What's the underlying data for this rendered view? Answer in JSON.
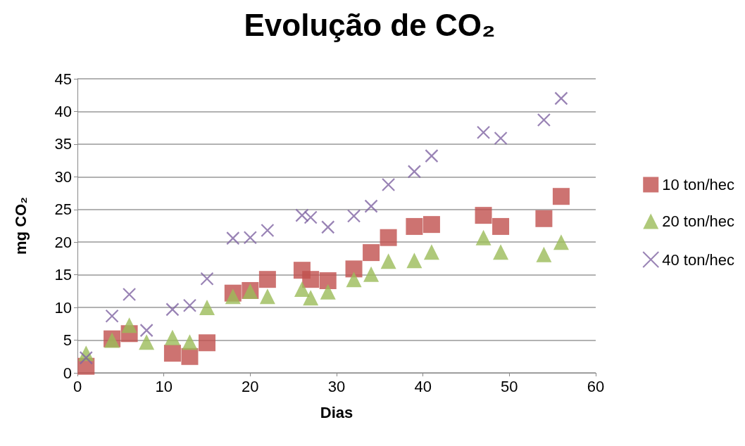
{
  "chart_data": {
    "type": "scatter",
    "title": "Evolução de CO₂",
    "xlabel": "Dias",
    "ylabel": "mg CO₂",
    "xlim": [
      0,
      60
    ],
    "xticks": [
      0,
      10,
      20,
      30,
      40,
      50,
      60
    ],
    "ylim": [
      0,
      45
    ],
    "yticks": [
      0,
      5,
      10,
      15,
      20,
      25,
      30,
      35,
      40,
      45
    ],
    "grid": "y",
    "legend": "right",
    "series": [
      {
        "name": "10 ton/hec",
        "color": "#c0504d",
        "marker": "square",
        "x": [
          1,
          4,
          6,
          11,
          13,
          15,
          18,
          20,
          22,
          26,
          27,
          29,
          32,
          34,
          36,
          39,
          41,
          47,
          49,
          54,
          56
        ],
        "values": [
          1,
          5.2,
          6,
          3,
          2.5,
          4.6,
          12.2,
          12.6,
          14.3,
          15.7,
          14.3,
          14.1,
          15.9,
          18.4,
          20.7,
          22.4,
          22.7,
          24.1,
          22.4,
          23.6,
          27
        ]
      },
      {
        "name": "20 ton/hec",
        "color": "#9bbb59",
        "marker": "triangle",
        "x": [
          1,
          4,
          6,
          8,
          11,
          13,
          15,
          18,
          20,
          22,
          26,
          27,
          29,
          32,
          34,
          36,
          39,
          41,
          47,
          49,
          54,
          56
        ],
        "values": [
          3,
          5,
          7.3,
          4.7,
          5.4,
          4.7,
          10,
          11.7,
          12.5,
          11.7,
          12.8,
          11.5,
          12.4,
          14.3,
          15.1,
          17.1,
          17.2,
          18.5,
          20.7,
          18.5,
          18.1,
          20
        ]
      },
      {
        "name": "40 ton/hec",
        "color": "#8064a2",
        "marker": "cross",
        "x": [
          1,
          4,
          6,
          8,
          11,
          13,
          15,
          18,
          20,
          22,
          26,
          27,
          29,
          32,
          34,
          36,
          39,
          41,
          47,
          49,
          54,
          56
        ],
        "values": [
          2.3,
          8.7,
          12,
          6.5,
          9.7,
          10.3,
          14.4,
          20.6,
          20.7,
          21.8,
          24.1,
          23.8,
          22.3,
          24,
          25.5,
          28.8,
          30.8,
          33.2,
          36.8,
          35.9,
          38.7,
          42
        ]
      }
    ]
  }
}
